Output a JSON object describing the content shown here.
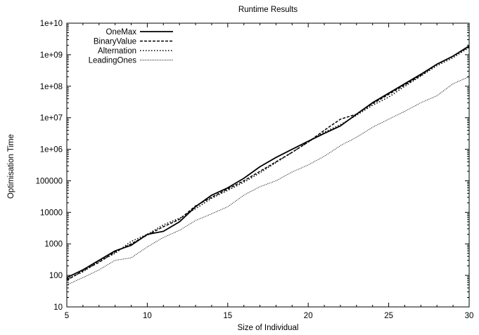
{
  "chart_data": {
    "type": "line",
    "title": "Runtime Results",
    "xlabel": "Size of Individual",
    "ylabel": "Optimisation Time",
    "xlim": [
      5,
      30
    ],
    "ylim": [
      10,
      10000000000
    ],
    "yscale": "log",
    "xticks": [
      "5",
      "10",
      "15",
      "20",
      "25",
      "30"
    ],
    "yticks": [
      "10",
      "100",
      "1000",
      "10000",
      "100000",
      "1e+06",
      "1e+07",
      "1e+08",
      "1e+09",
      "1e+10"
    ],
    "legend_position": "top-left",
    "x": [
      5,
      6,
      7,
      8,
      9,
      10,
      11,
      12,
      13,
      14,
      15,
      16,
      17,
      18,
      19,
      20,
      21,
      22,
      23,
      24,
      25,
      26,
      27,
      28,
      29,
      30
    ],
    "series": [
      {
        "name": "OneMax",
        "style": "solid",
        "values": [
          85,
          150,
          300,
          600,
          900,
          2000,
          2500,
          5000,
          15000,
          35000,
          60000,
          120000,
          280000,
          550000,
          1000000,
          1800000,
          3200000,
          5500000,
          13000000,
          30000000,
          60000000,
          120000000,
          240000000,
          500000000,
          900000000,
          1900000000
        ]
      },
      {
        "name": "BinaryValue",
        "style": "dashed",
        "values": [
          70,
          140,
          260,
          550,
          1000,
          1900,
          3500,
          6000,
          16000,
          30000,
          55000,
          100000,
          200000,
          400000,
          800000,
          1700000,
          4000000,
          9000000,
          13000000,
          28000000,
          55000000,
          110000000,
          220000000,
          500000000,
          900000000,
          1800000000
        ]
      },
      {
        "name": "Alternation",
        "style": "dotted",
        "values": [
          75,
          130,
          280,
          500,
          1200,
          2000,
          4000,
          6500,
          13000,
          28000,
          50000,
          90000,
          180000,
          380000,
          800000,
          1700000,
          3500000,
          6000000,
          12000000,
          25000000,
          45000000,
          100000000,
          210000000,
          450000000,
          800000000,
          1700000000
        ]
      },
      {
        "name": "LeadingOnes",
        "style": "fine-dotted",
        "values": [
          50,
          85,
          150,
          300,
          360,
          800,
          1600,
          2700,
          5500,
          9000,
          15000,
          35000,
          65000,
          100000,
          190000,
          320000,
          600000,
          1300000,
          2400000,
          5000000,
          9000000,
          16000000,
          30000000,
          50000000,
          120000000,
          200000000
        ]
      }
    ]
  }
}
